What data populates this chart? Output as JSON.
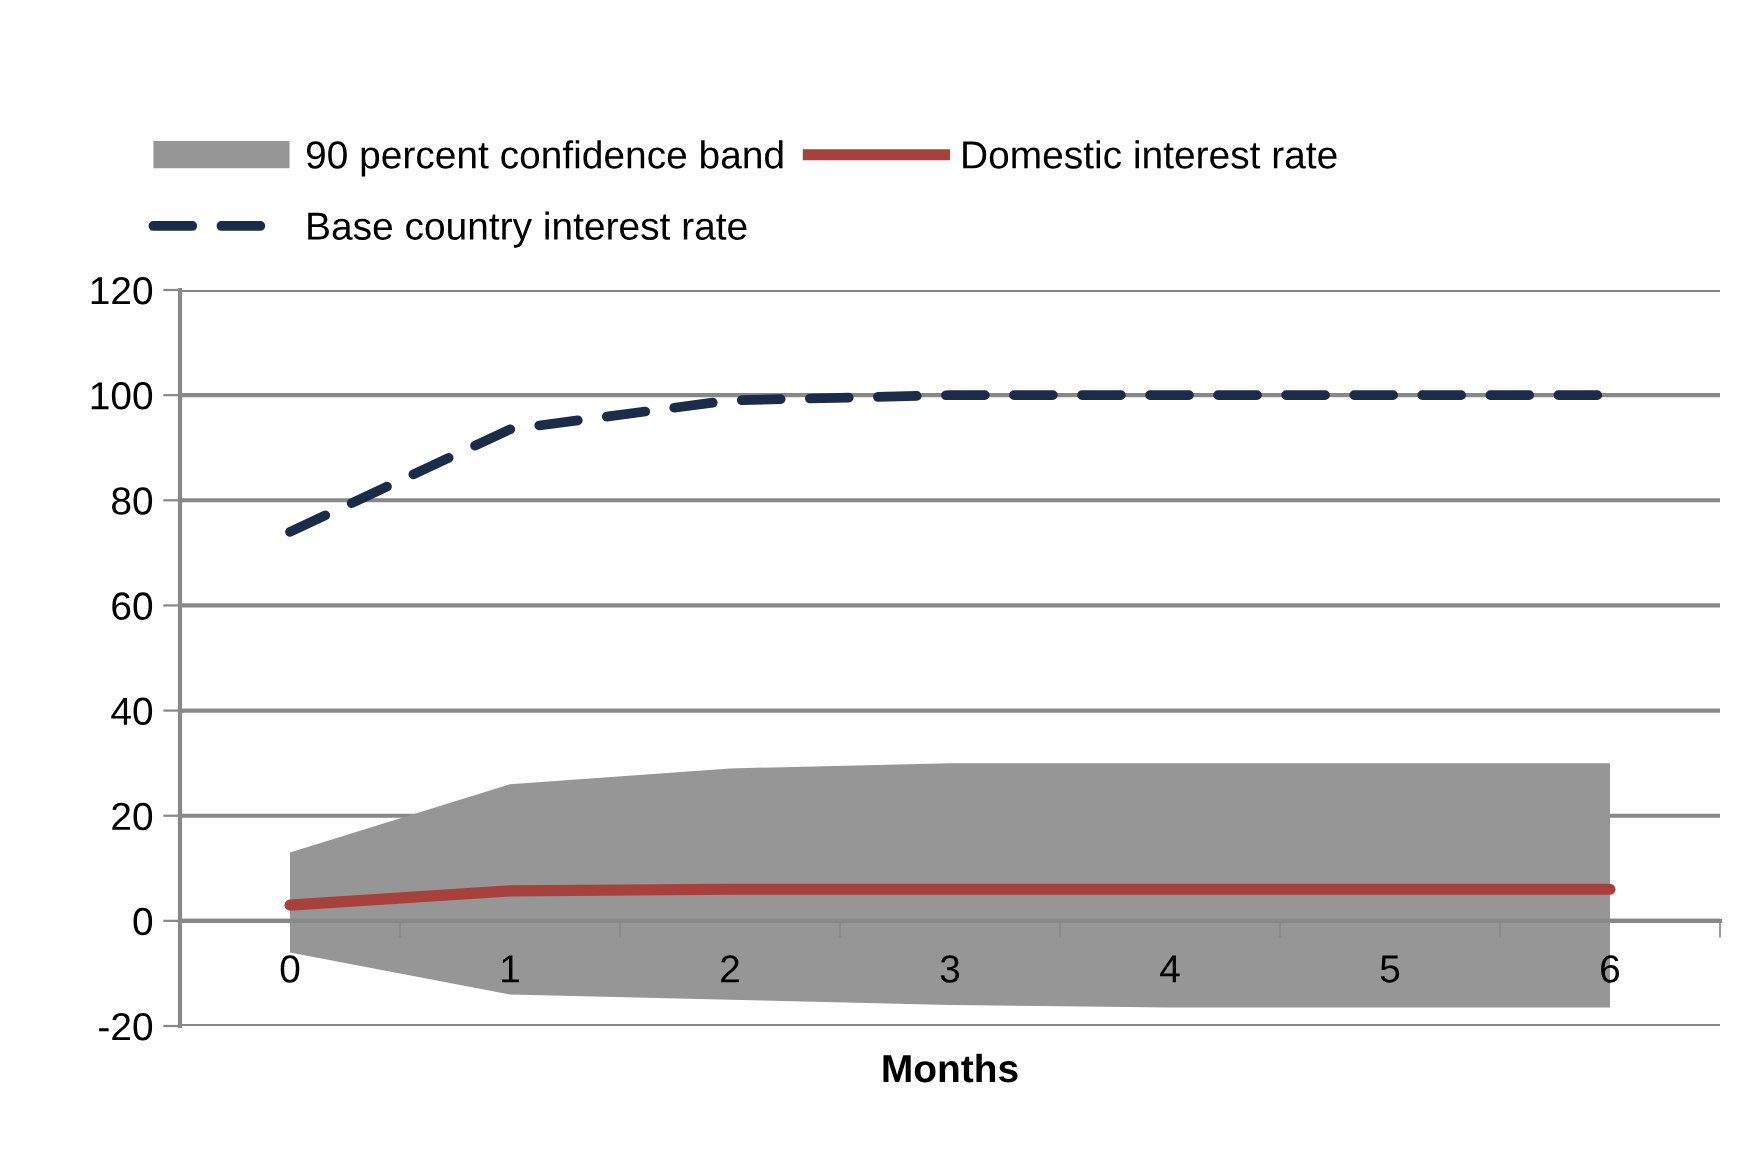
{
  "chart_data": {
    "type": "line",
    "xlabel": "Months",
    "categories": [
      "0",
      "1",
      "2",
      "3",
      "4",
      "5",
      "6"
    ],
    "series": [
      {
        "name": "Domestic interest rate",
        "type": "line",
        "color": "#a8403c",
        "line_style": "solid",
        "values": [
          3,
          5.7,
          6,
          6,
          6,
          6,
          6
        ],
        "lower": [
          -6,
          -14,
          -15,
          -16,
          -16.5,
          -16.5,
          -16.5
        ],
        "upper": [
          13,
          26,
          29,
          30,
          30,
          30,
          30
        ]
      },
      {
        "name": "Base country interest rate",
        "type": "line",
        "color": "#1a2c4a",
        "line_style": "dashed",
        "values": [
          74,
          93.5,
          99,
          100,
          100,
          100,
          100
        ]
      }
    ],
    "annotations": [
      "90 percent confidence band"
    ],
    "ylim": [
      -20,
      120
    ],
    "yticks": [
      -20,
      0,
      20,
      40,
      60,
      80,
      100,
      120
    ],
    "grid": "y",
    "legend": "top",
    "marker": "none"
  }
}
